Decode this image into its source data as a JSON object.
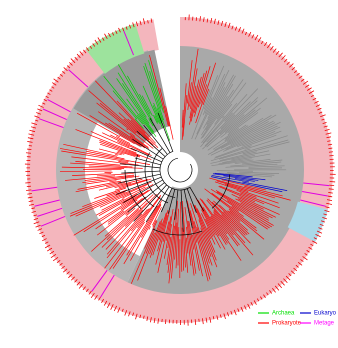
{
  "legend": {
    "items": [
      {
        "label": "Archaea",
        "color": "#00e000"
      },
      {
        "label": "Eukaryo",
        "color": "#0000cc"
      },
      {
        "label": "Prokaryote",
        "color": "#ff0000"
      },
      {
        "label": "Metage",
        "color": "#ff00ff"
      }
    ]
  }
}
